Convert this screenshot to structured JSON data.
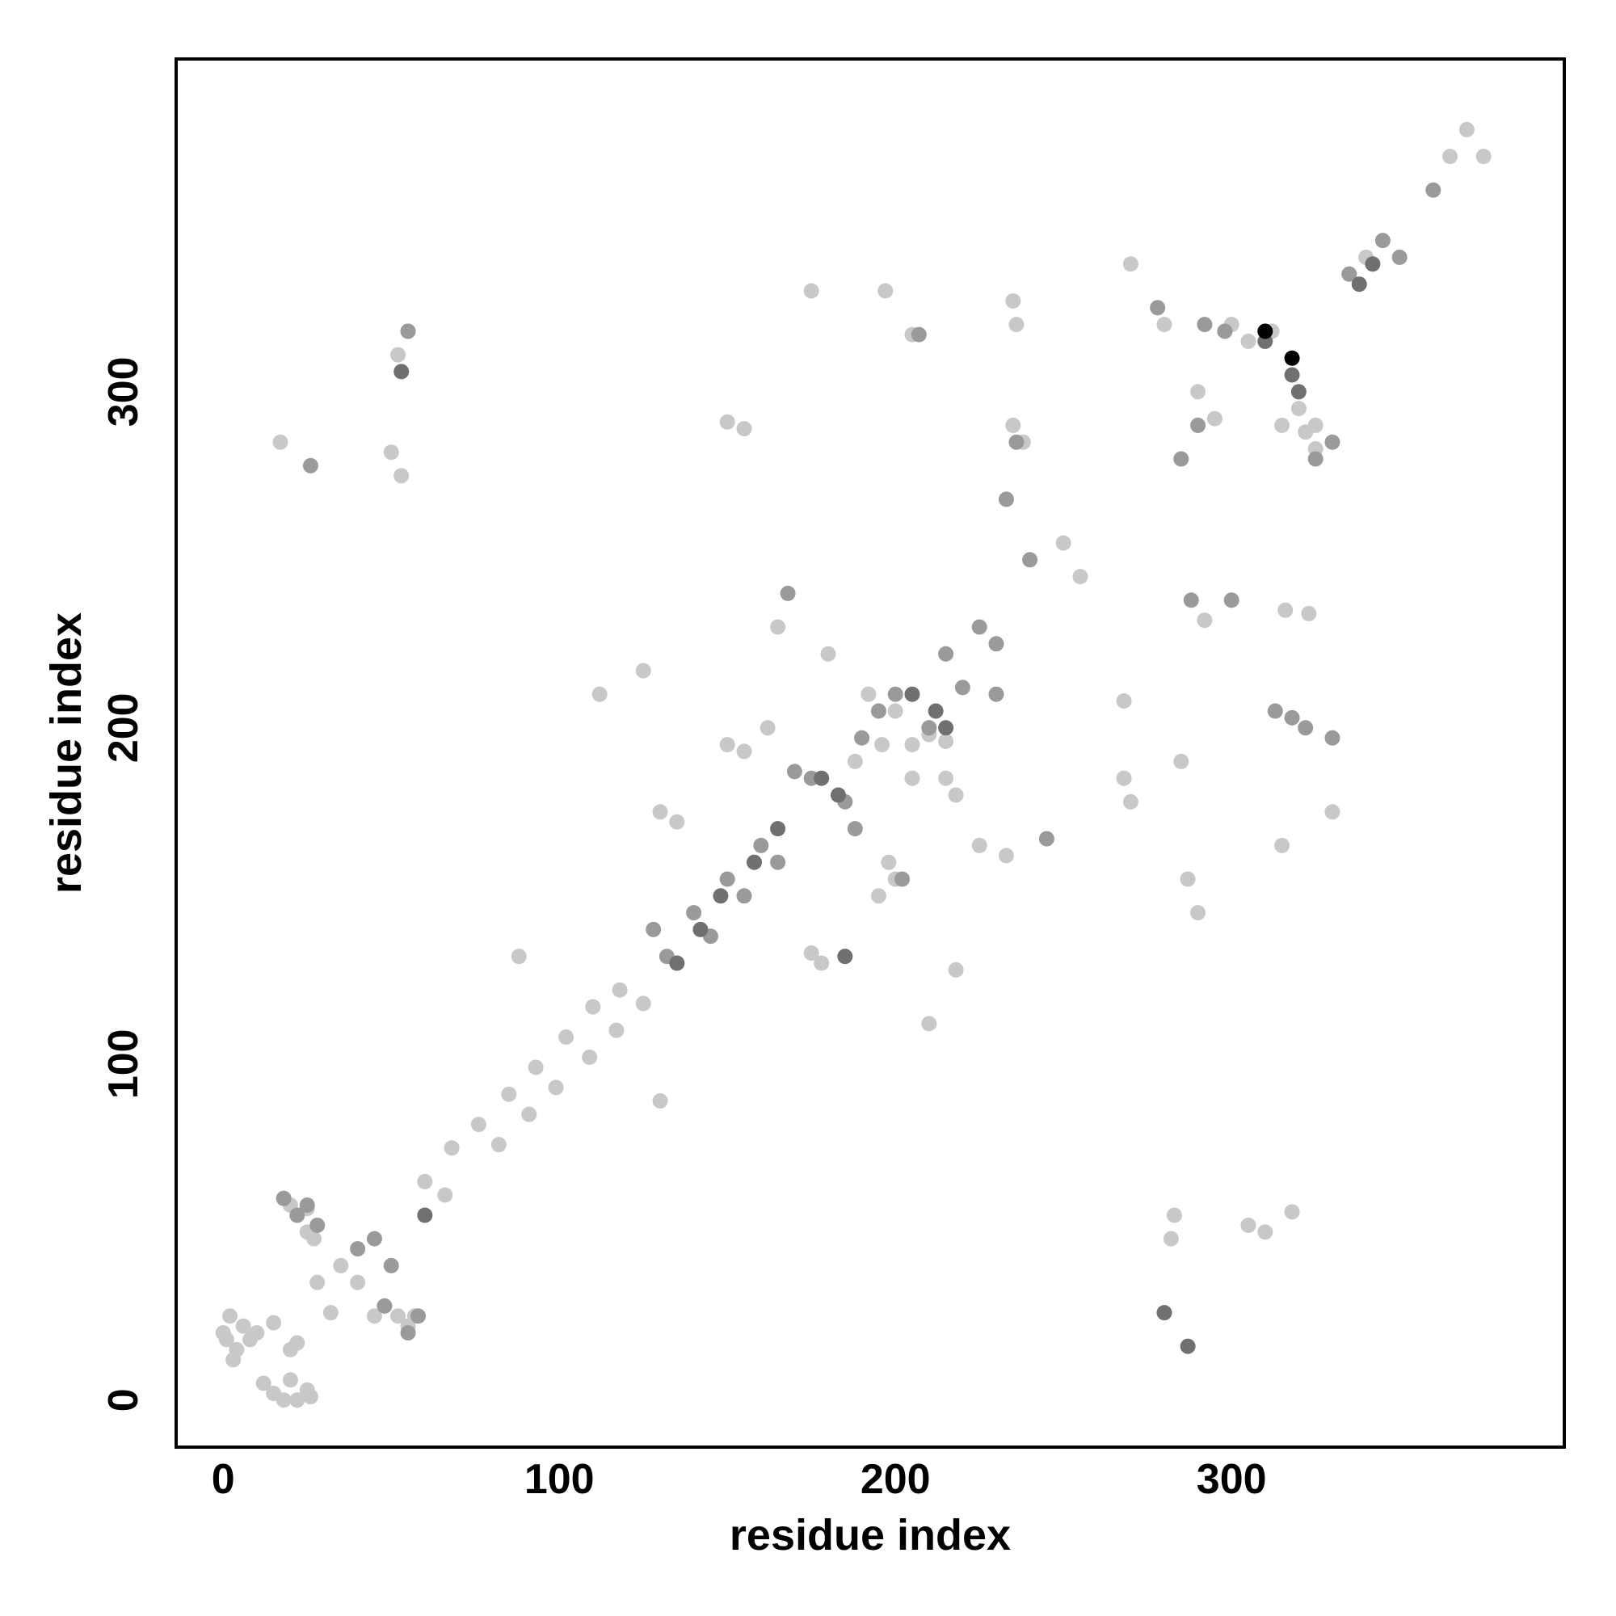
{
  "chart_data": {
    "type": "scatter",
    "x_label": "residue index",
    "y_label": "residue index",
    "xlim": [
      -14,
      399
    ],
    "ylim": [
      -14,
      399
    ],
    "xticks": [
      0,
      100,
      200,
      300
    ],
    "yticks": [
      0,
      100,
      200,
      300
    ],
    "grid": false,
    "series": [
      {
        "color": "#c8c8c8",
        "x": [
          0,
          2,
          4,
          6,
          3,
          8,
          1,
          12,
          15,
          18,
          22,
          25,
          20,
          26,
          10,
          15,
          20,
          22,
          25,
          22,
          27,
          20,
          25,
          28,
          32,
          35,
          40,
          48,
          45,
          52,
          55,
          57,
          60,
          66,
          68,
          76,
          82,
          85,
          91,
          93,
          99,
          102,
          109,
          110,
          117,
          118,
          125,
          17,
          52,
          55,
          50,
          53,
          283,
          282,
          305,
          310,
          318,
          150,
          155,
          175,
          197,
          205,
          235,
          236,
          235,
          238,
          270,
          280,
          292,
          316,
          323,
          285,
          287,
          290,
          330,
          315,
          268,
          270,
          268,
          225,
          233,
          210,
          218,
          175,
          178,
          130,
          135,
          125,
          112,
          88,
          130,
          150,
          155,
          162,
          165,
          180,
          198,
          195,
          200,
          205,
          215,
          218,
          250,
          255,
          300,
          305,
          312,
          320,
          325,
          335,
          340,
          365,
          370,
          375,
          290,
          295,
          315,
          322,
          325,
          192,
          200,
          210,
          205,
          210,
          215,
          196,
          188
        ],
        "y": [
          20,
          25,
          15,
          22,
          12,
          18,
          18,
          5,
          2,
          0,
          0,
          3,
          6,
          1,
          20,
          23,
          15,
          17,
          50,
          55,
          48,
          58,
          57,
          35,
          26,
          40,
          35,
          28,
          25,
          25,
          22,
          25,
          65,
          61,
          75,
          82,
          76,
          91,
          85,
          99,
          93,
          108,
          102,
          117,
          110,
          122,
          118,
          285,
          311,
          318,
          282,
          275,
          55,
          48,
          52,
          50,
          56,
          291,
          289,
          330,
          330,
          317,
          327,
          320,
          290,
          285,
          338,
          320,
          232,
          235,
          234,
          190,
          155,
          145,
          175,
          165,
          185,
          178,
          208,
          165,
          162,
          112,
          128,
          133,
          130,
          175,
          172,
          217,
          210,
          132,
          89,
          195,
          193,
          200,
          230,
          222,
          160,
          150,
          155,
          185,
          185,
          180,
          255,
          245,
          320,
          315,
          318,
          295,
          290,
          335,
          340,
          370,
          378,
          370,
          300,
          292,
          290,
          288,
          283,
          210,
          205,
          200,
          195,
          198,
          196,
          195,
          190
        ]
      },
      {
        "color": "#9a9a9a",
        "x": [
          18,
          22,
          25,
          28,
          40,
          45,
          50,
          48,
          55,
          58,
          128,
          132,
          140,
          145,
          150,
          155,
          160,
          165,
          170,
          175,
          185,
          188,
          190,
          195,
          200,
          210,
          215,
          225,
          230,
          240,
          26,
          55,
          207,
          233,
          236,
          278,
          288,
          313,
          318,
          322,
          330,
          168,
          220,
          230,
          202,
          245,
          325,
          330,
          335,
          345,
          350,
          360,
          292,
          298,
          290,
          285,
          300
        ],
        "y": [
          60,
          55,
          58,
          52,
          45,
          48,
          40,
          28,
          20,
          25,
          140,
          132,
          145,
          138,
          155,
          150,
          165,
          160,
          187,
          185,
          178,
          170,
          197,
          205,
          210,
          200,
          222,
          230,
          225,
          250,
          278,
          318,
          317,
          268,
          285,
          325,
          238,
          205,
          203,
          200,
          197,
          240,
          212,
          210,
          155,
          167,
          280,
          285,
          335,
          345,
          340,
          360,
          320,
          318,
          290,
          280,
          238
        ]
      },
      {
        "color": "#707070",
        "x": [
          53,
          60,
          135,
          142,
          148,
          158,
          165,
          178,
          183,
          205,
          212,
          280,
          287,
          310,
          318,
          185,
          215,
          320,
          338,
          342
        ],
        "y": [
          306,
          55,
          130,
          140,
          150,
          160,
          170,
          185,
          180,
          210,
          205,
          26,
          16,
          315,
          305,
          132,
          200,
          300,
          332,
          338
        ]
      },
      {
        "color": "#000000",
        "x": [
          310,
          318
        ],
        "y": [
          318,
          310
        ]
      }
    ]
  }
}
